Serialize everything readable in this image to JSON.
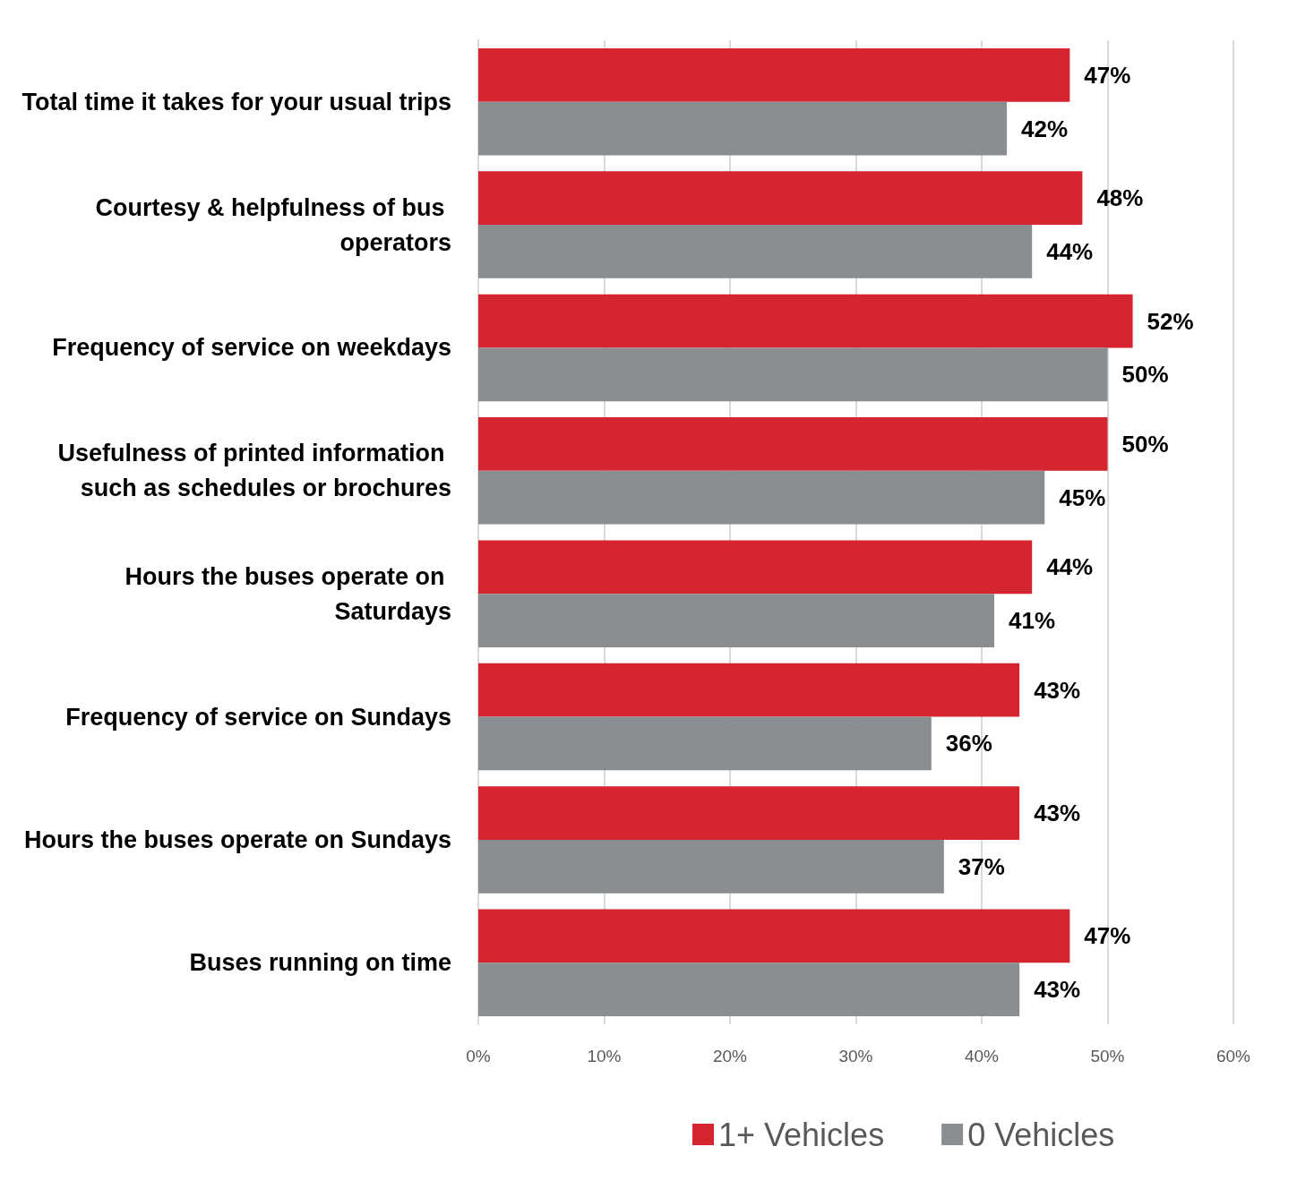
{
  "chart_data": {
    "type": "bar",
    "orientation": "horizontal",
    "categories": [
      "Total time it takes for your usual trips",
      "Courtesy & helpfulness of bus operators",
      "Frequency of service on weekdays",
      "Usefulness of printed information such as schedules or brochures",
      "Hours the buses operate on Saturdays",
      "Frequency of service on Sundays",
      "Hours the buses operate on Sundays",
      "Buses running on time"
    ],
    "series": [
      {
        "name": "1+ Vehicles",
        "color": "#d42531",
        "values": [
          47,
          48,
          52,
          50,
          44,
          43,
          43,
          47
        ],
        "value_labels": [
          "47%",
          "48%",
          "52%",
          "50%",
          "44%",
          "43%",
          "43%",
          "47%"
        ]
      },
      {
        "name": "0 Vehicles",
        "color": "#8b8e90",
        "values": [
          42,
          44,
          50,
          45,
          41,
          36,
          37,
          43
        ],
        "value_labels": [
          "42%",
          "44%",
          "50%",
          "45%",
          "41%",
          "36%",
          "37%",
          "43%"
        ]
      }
    ],
    "xlim": [
      0,
      60
    ],
    "xticks": [
      {
        "value": 0,
        "label": "0%"
      },
      {
        "value": 10,
        "label": "10%"
      },
      {
        "value": 20,
        "label": "20%"
      },
      {
        "value": 30,
        "label": "30%"
      },
      {
        "value": 40,
        "label": "40%"
      },
      {
        "value": 50,
        "label": "50%"
      },
      {
        "value": 60,
        "label": "60%"
      }
    ],
    "grid": "x",
    "legend": "bottom"
  }
}
